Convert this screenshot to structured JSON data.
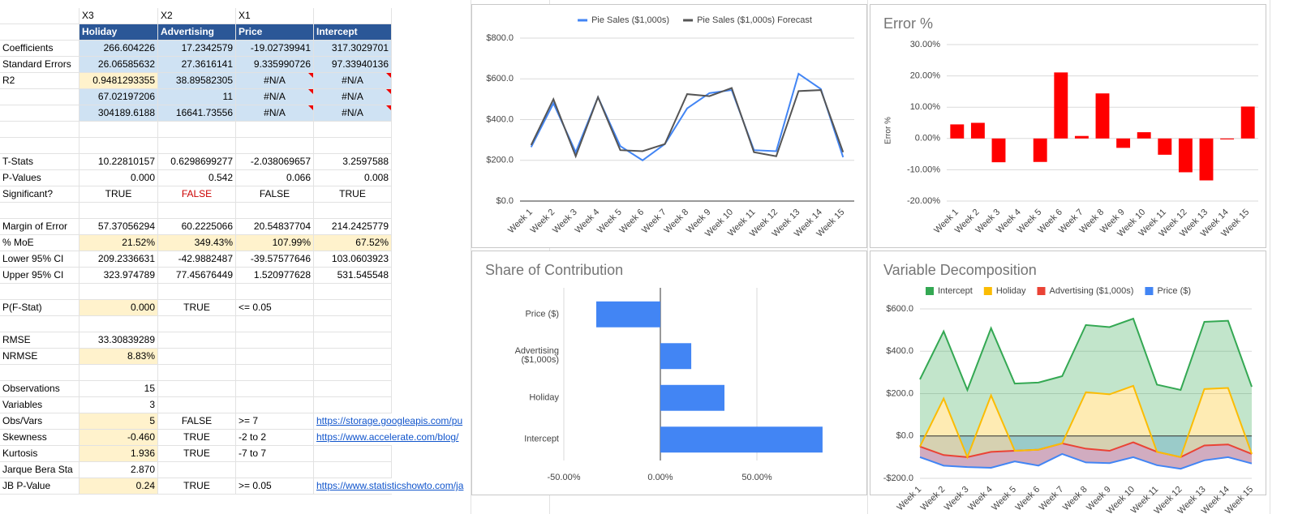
{
  "sheet": {
    "rows": [
      [
        null,
        "X3",
        "X2",
        "X1",
        null
      ],
      [
        null,
        "Holiday",
        "Advertising",
        "Price",
        "Intercept"
      ],
      [
        "Coefficients",
        "266.604226",
        "17.2342579",
        "-19.02739941",
        "317.3029701"
      ],
      [
        "Standard Errors",
        "26.06585632",
        "27.3616141",
        "9.335990726",
        "97.33940136"
      ],
      [
        "R2",
        "0.9481293355",
        "38.89582305",
        "#N/A",
        "#N/A"
      ],
      [
        null,
        "67.02197206",
        "11",
        "#N/A",
        "#N/A"
      ],
      [
        null,
        "304189.6188",
        "16641.73556",
        "#N/A",
        "#N/A"
      ],
      [
        null,
        null,
        null,
        null,
        null
      ],
      [
        null,
        null,
        null,
        null,
        null
      ],
      [
        "T-Stats",
        "10.22810157",
        "0.6298699277",
        "-2.038069657",
        "3.2597588"
      ],
      [
        "P-Values",
        "0.000",
        "0.542",
        "0.066",
        "0.008"
      ],
      [
        "Significant?",
        "TRUE",
        "FALSE",
        "FALSE",
        "TRUE"
      ],
      [
        null,
        null,
        null,
        null,
        null
      ],
      [
        "Margin of Error",
        "57.37056294",
        "60.2225066",
        "20.54837704",
        "214.2425779"
      ],
      [
        "% MoE",
        "21.52%",
        "349.43%",
        "107.99%",
        "67.52%"
      ],
      [
        "Lower 95% CI",
        "209.2336631",
        "-42.9882487",
        "-39.57577646",
        "103.0603923"
      ],
      [
        "Upper 95% CI",
        "323.974789",
        "77.45676449",
        "1.520977628",
        "531.545548"
      ],
      [
        null,
        null,
        null,
        null,
        null
      ],
      [
        "P(F-Stat)",
        "0.000",
        "TRUE",
        "<= 0.05",
        null
      ],
      [
        null,
        null,
        null,
        null,
        null
      ],
      [
        "RMSE",
        "33.30839289",
        null,
        null,
        null
      ],
      [
        "NRMSE",
        "8.83%",
        null,
        null,
        null
      ],
      [
        null,
        null,
        null,
        null,
        null
      ],
      [
        "Observations",
        "15",
        null,
        null,
        null
      ],
      [
        "Variables",
        "3",
        null,
        null,
        null
      ],
      [
        "Obs/Vars",
        "5",
        "FALSE",
        ">= 7",
        "https://storage.googleapis.com/pu"
      ],
      [
        "Skewness",
        "-0.460",
        "TRUE",
        "-2 to 2",
        "https://www.accelerate.com/blog/"
      ],
      [
        "Kurtosis",
        "1.936",
        "TRUE",
        "-7 to 7",
        null
      ],
      [
        "Jarque Bera Sta",
        "2.870",
        null,
        null,
        null
      ],
      [
        "JB P-Value",
        "0.24",
        "TRUE",
        ">= 0.05",
        "https://www.statisticshowto.com/ja"
      ]
    ]
  },
  "chart_data": [
    {
      "type": "line",
      "categories": [
        "Week 1",
        "Week 2",
        "Week 3",
        "Week 4",
        "Week 5",
        "Week 6",
        "Week 7",
        "Week 8",
        "Week 9",
        "Week 10",
        "Week 11",
        "Week 12",
        "Week 13",
        "Week 14",
        "Week 15"
      ],
      "series": [
        {
          "name": "Pie Sales ($1,000s)",
          "color": "#4285f4",
          "values": [
            265,
            480,
            240,
            510,
            270,
            200,
            280,
            455,
            530,
            545,
            250,
            245,
            625,
            550,
            215
          ]
        },
        {
          "name": "Pie Sales ($1,000s) Forecast",
          "color": "#555555",
          "values": [
            275,
            500,
            220,
            510,
            250,
            245,
            280,
            525,
            515,
            555,
            240,
            220,
            540,
            545,
            240
          ]
        }
      ],
      "ylim": [
        0,
        800
      ],
      "yticks": [
        {
          "value": 0,
          "label": "$0.0"
        },
        {
          "value": 200,
          "label": "$200.0"
        },
        {
          "value": 400,
          "label": "$400.0"
        },
        {
          "value": 600,
          "label": "$600.0"
        },
        {
          "value": 800,
          "label": "$800.0"
        }
      ],
      "grid": true,
      "legend": "top"
    },
    {
      "type": "bar",
      "title": "Error %",
      "y_label": "Error %",
      "categories": [
        "Week 1",
        "Week 2",
        "Week 3",
        "Week 4",
        "Week 5",
        "Week 6",
        "Week 7",
        "Week 8",
        "Week 9",
        "Week 10",
        "Week 11",
        "Week 12",
        "Week 13",
        "Week 14",
        "Week 15"
      ],
      "values": [
        4.5,
        5,
        -7.6,
        0,
        -7.5,
        21.1,
        0.8,
        14.4,
        -3,
        2,
        -5.2,
        -10.8,
        -13.4,
        -0.3,
        10.2
      ],
      "color": "#ff0000",
      "ylim": [
        -20,
        30
      ],
      "yticks": [
        {
          "value": -20,
          "label": "-20.00%"
        },
        {
          "value": -10,
          "label": "-10.00%"
        },
        {
          "value": 0,
          "label": "0.00%"
        },
        {
          "value": 10,
          "label": "10.00%"
        },
        {
          "value": 20,
          "label": "20.00%"
        },
        {
          "value": 30,
          "label": "30.00%"
        }
      ],
      "grid": true
    },
    {
      "type": "hbar",
      "title": "Share of Contribution",
      "categories": [
        "Price ($)",
        "Advertising ($1,000s)",
        "Holiday",
        "Intercept"
      ],
      "values": [
        -33.2,
        16,
        33.2,
        84
      ],
      "color": "#4285f4",
      "xlim": [
        -50,
        100
      ],
      "xticks": [
        {
          "value": -50,
          "label": "-50.00%"
        },
        {
          "value": 0,
          "label": "0.00%"
        },
        {
          "value": 50,
          "label": "50.00%"
        }
      ],
      "grid": true
    },
    {
      "type": "area",
      "title": "Variable Decomposition",
      "stacked": true,
      "categories": [
        "Week 1",
        "Week 2",
        "Week 3",
        "Week 4",
        "Week 5",
        "Week 6",
        "Week 7",
        "Week 8",
        "Week 9",
        "Week 10",
        "Week 11",
        "Week 12",
        "Week 13",
        "Week 14",
        "Week 15"
      ],
      "series": [
        {
          "name": "Intercept",
          "color": "#34a853",
          "values": [
            317.3,
            317.3,
            317.3,
            317.3,
            317.3,
            317.3,
            317.3,
            317.3,
            317.3,
            317.3,
            317.3,
            317.3,
            317.3,
            317.3,
            317.3
          ]
        },
        {
          "name": "Holiday",
          "color": "#fbbc04",
          "values": [
            0,
            266.6,
            0,
            266.6,
            0,
            0,
            0,
            266.6,
            266.6,
            266.6,
            0,
            0,
            266.6,
            266.6,
            0
          ]
        },
        {
          "name": "Advertising ($1,000s)",
          "color": "#ea4335",
          "values": [
            50,
            50,
            47,
            75,
            50,
            75,
            50,
            65,
            58,
            70,
            63,
            55,
            70,
            60,
            45
          ]
        },
        {
          "name": "Price ($)",
          "color": "#4285f4",
          "values": [
            -100,
            -140,
            -147,
            -150,
            -120,
            -140,
            -85,
            -125,
            -128,
            -100,
            -138,
            -155,
            -115,
            -100,
            -130
          ]
        }
      ],
      "ylim": [
        -200,
        600
      ],
      "yticks": [
        {
          "value": -200,
          "label": "-$200.0"
        },
        {
          "value": 0,
          "label": "$0.0"
        },
        {
          "value": 200,
          "label": "$200.0"
        },
        {
          "value": 400,
          "label": "$400.0"
        },
        {
          "value": 600,
          "label": "$600.0"
        }
      ],
      "grid": true,
      "legend": "top"
    }
  ]
}
